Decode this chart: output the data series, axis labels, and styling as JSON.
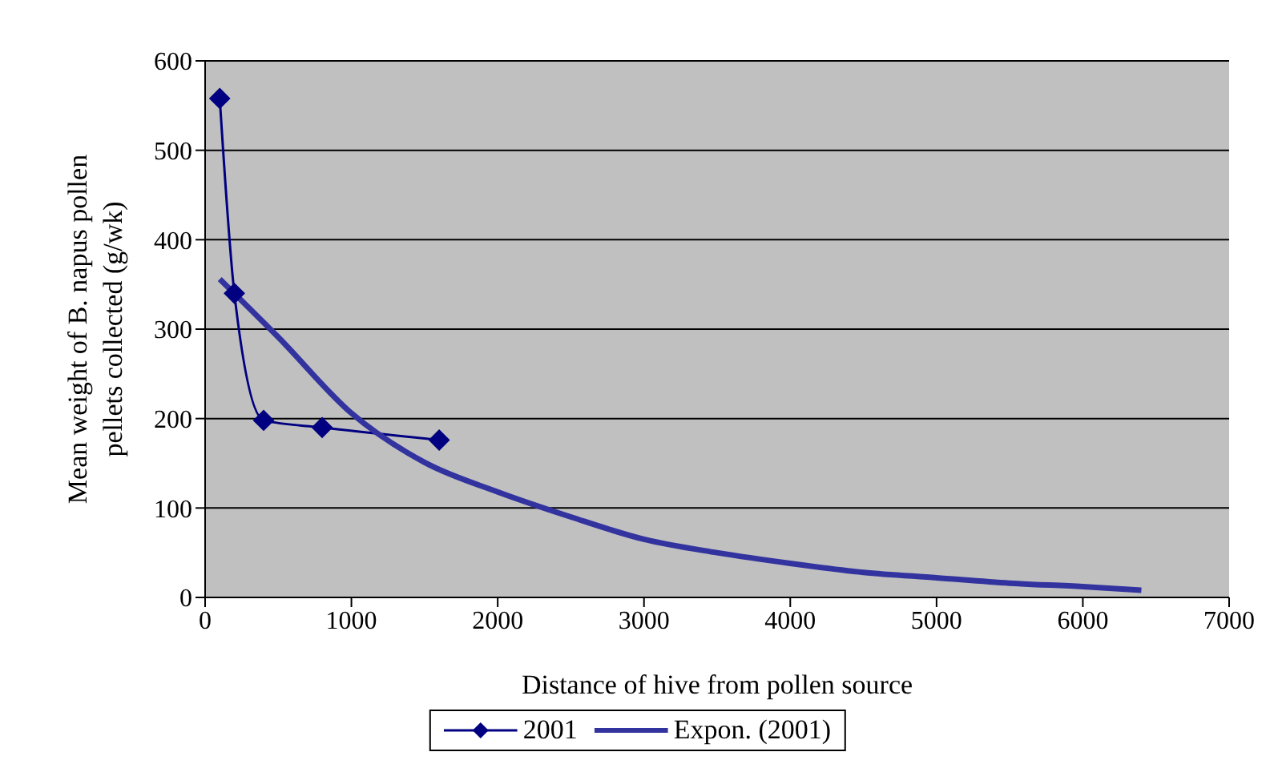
{
  "chart_data": {
    "type": "line",
    "xlabel": "Distance of hive from pollen source",
    "ylabel": "Mean weight of B. napus pollen pellets collected (g/wk)",
    "xlim": [
      0,
      7000
    ],
    "xticks": [
      0,
      1000,
      2000,
      3000,
      4000,
      5000,
      6000,
      7000
    ],
    "ylim": [
      0,
      600
    ],
    "yticks": [
      0,
      100,
      200,
      300,
      400,
      500,
      600
    ],
    "grid": "y",
    "legend": "bottom",
    "series": [
      {
        "name": "2001",
        "color": "#000080",
        "marker": "diamond",
        "x": [
          100,
          200,
          400,
          800,
          1600
        ],
        "values": [
          558,
          340,
          198,
          190,
          176
        ]
      },
      {
        "name": "Expon. (2001)",
        "color": "#3333a0",
        "marker": "none",
        "x": [
          100,
          500,
          1000,
          1500,
          2000,
          2500,
          3000,
          3500,
          4000,
          4500,
          5000,
          5500,
          6000,
          6400
        ],
        "values": [
          356,
          291,
          206,
          151,
          118,
          90,
          65,
          50,
          38,
          28,
          22,
          16,
          12,
          8
        ]
      }
    ]
  }
}
